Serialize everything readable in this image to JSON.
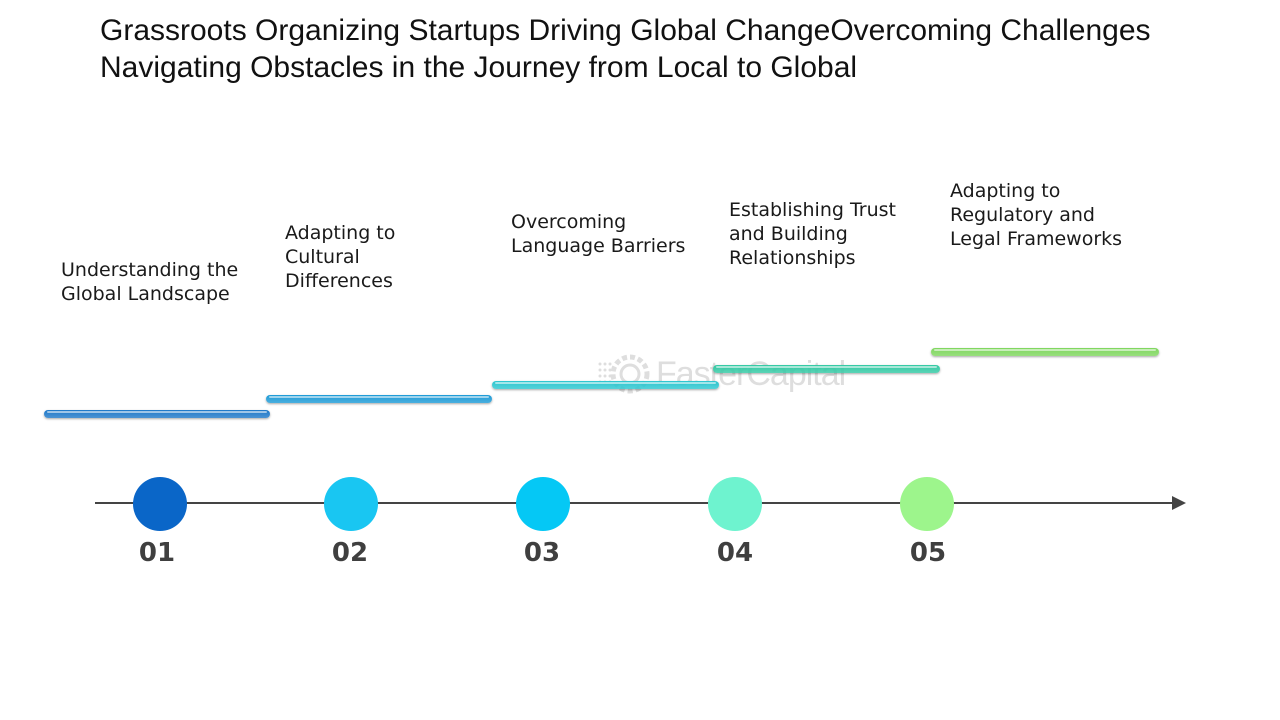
{
  "title": "Grassroots Organizing Startups Driving Global ChangeOvercoming Challenges Navigating Obstacles in the Journey from Local to Global",
  "watermark": "FasterCapital",
  "steps": [
    {
      "number": "01",
      "label": "Understanding the\nGlobal Landscape",
      "dot_color": "#0a66c8",
      "bar_color": "#1e78c8"
    },
    {
      "number": "02",
      "label": "Adapting to\nCultural\nDifferences",
      "dot_color": "#19c6f2",
      "bar_color": "#1e9bd6"
    },
    {
      "number": "03",
      "label": "Overcoming\nLanguage Barriers",
      "dot_color": "#05c8f5",
      "bar_color": "#2cc6cf"
    },
    {
      "number": "04",
      "label": "Establishing Trust\nand Building\nRelationships",
      "dot_color": "#6ef3cf",
      "bar_color": "#33c9a4"
    },
    {
      "number": "05",
      "label": "Adapting to\nRegulatory and\nLegal Frameworks",
      "dot_color": "#9df58c",
      "bar_color": "#7fd65e"
    }
  ]
}
